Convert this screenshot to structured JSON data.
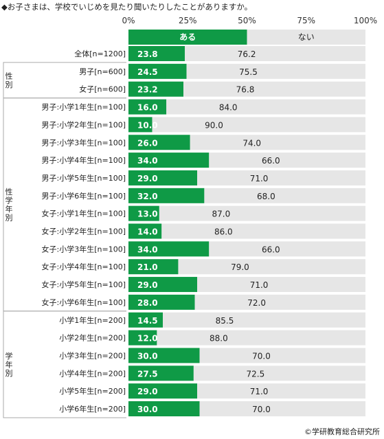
{
  "title": "◆お子さまは、学校でいじめを見たり聞いたりしたことがありますか。",
  "credit": "©学研教育総合研究所",
  "colors": {
    "a": "#0f9a46",
    "b": "#e6e6e6",
    "bracket": "#aaaaaa"
  },
  "chart_data": {
    "type": "bar",
    "orientation": "horizontal",
    "stacked": true,
    "percent": true,
    "x_ticks": [
      "0%",
      "25%",
      "50%",
      "75%",
      "100%"
    ],
    "xlim": [
      0,
      100
    ],
    "series": [
      {
        "name": "ある",
        "values": [
          23.8,
          24.5,
          23.2,
          16.0,
          10.0,
          26.0,
          34.0,
          29.0,
          32.0,
          13.0,
          14.0,
          34.0,
          21.0,
          29.0,
          28.0,
          14.5,
          12.0,
          30.0,
          27.5,
          29.0,
          30.0
        ]
      },
      {
        "name": "ない",
        "values": [
          76.2,
          75.5,
          76.8,
          84.0,
          90.0,
          74.0,
          66.0,
          71.0,
          68.0,
          87.0,
          86.0,
          66.0,
          79.0,
          71.0,
          72.0,
          85.5,
          88.0,
          70.0,
          72.5,
          71.0,
          70.0
        ]
      }
    ],
    "categories": [
      "全体[n=1200]",
      "男子[n=600]",
      "女子[n=600]",
      "男子:小学1年生[n=100]",
      "男子:小学2年生[n=100]",
      "男子:小学3年生[n=100]",
      "男子:小学4年生[n=100]",
      "男子:小学5年生[n=100]",
      "男子:小学6年生[n=100]",
      "女子:小学1年生[n=100]",
      "女子:小学2年生[n=100]",
      "女子:小学3年生[n=100]",
      "女子:小学4年生[n=100]",
      "女子:小学5年生[n=100]",
      "女子:小学6年生[n=100]",
      "小学1年生[n=200]",
      "小学2年生[n=200]",
      "小学3年生[n=200]",
      "小学4年生[n=200]",
      "小学5年生[n=200]",
      "小学6年生[n=200]"
    ],
    "value_labels_a": [
      "23.8",
      "24.5",
      "23.2",
      "16.0",
      "10.0",
      "26.0",
      "34.0",
      "29.0",
      "32.0",
      "13.0",
      "14.0",
      "34.0",
      "21.0",
      "29.0",
      "28.0",
      "14.5",
      "12.0",
      "30.0",
      "27.5",
      "29.0",
      "30.0"
    ],
    "value_labels_b": [
      "76.2",
      "75.5",
      "76.8",
      "84.0",
      "90.0",
      "74.0",
      "66.0",
      "71.0",
      "68.0",
      "87.0",
      "86.0",
      "66.0",
      "79.0",
      "71.0",
      "72.0",
      "85.5",
      "88.0",
      "70.0",
      "72.5",
      "71.0",
      "70.0"
    ],
    "groups": [
      {
        "label": "性別",
        "start": 1,
        "end": 2
      },
      {
        "label": "性学年別",
        "start": 3,
        "end": 14
      },
      {
        "label": "学年別",
        "start": 15,
        "end": 20
      }
    ]
  }
}
